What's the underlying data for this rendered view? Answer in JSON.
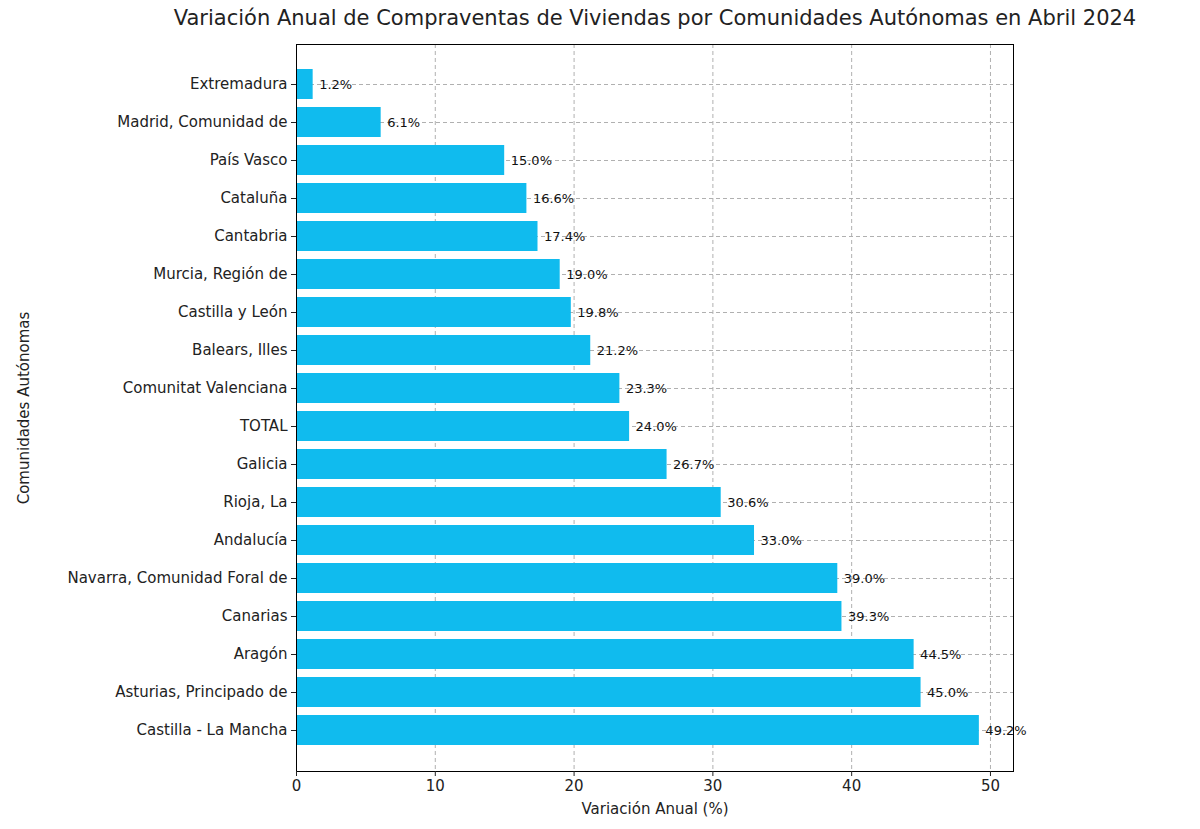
{
  "chart_data": {
    "type": "bar",
    "orientation": "horizontal",
    "title": "Variación Anual de Compraventas de Viviendas por Comunidades Autónomas en Abril 2024",
    "xlabel": "Variación Anual (%)",
    "ylabel": "Comunidades Autónomas",
    "categories": [
      "Extremadura",
      "Madrid, Comunidad de",
      "País Vasco",
      "Cataluña",
      "Cantabria",
      "Murcia, Región de",
      "Castilla y León",
      "Balears, Illes",
      "Comunitat Valenciana",
      "TOTAL",
      "Galicia",
      "Rioja, La",
      "Andalucía",
      "Navarra, Comunidad Foral de",
      "Canarias",
      "Aragón",
      "Asturias, Principado de",
      "Castilla - La Mancha"
    ],
    "values": [
      1.2,
      6.1,
      15.0,
      16.6,
      17.4,
      19.0,
      19.8,
      21.2,
      23.3,
      24.0,
      26.7,
      30.6,
      33.0,
      39.0,
      39.3,
      44.5,
      45.0,
      49.2
    ],
    "value_labels": [
      "1.2%",
      "6.1%",
      "15.0%",
      "16.6%",
      "17.4%",
      "19.0%",
      "19.8%",
      "21.2%",
      "23.3%",
      "24.0%",
      "26.7%",
      "30.6%",
      "33.0%",
      "39.0%",
      "39.3%",
      "44.5%",
      "45.0%",
      "49.2%"
    ],
    "color": "#10bbee",
    "xlim": [
      0,
      51.66
    ],
    "xticks": [
      0,
      10,
      20,
      30,
      40,
      50
    ],
    "grid": true,
    "data_labels": true
  }
}
